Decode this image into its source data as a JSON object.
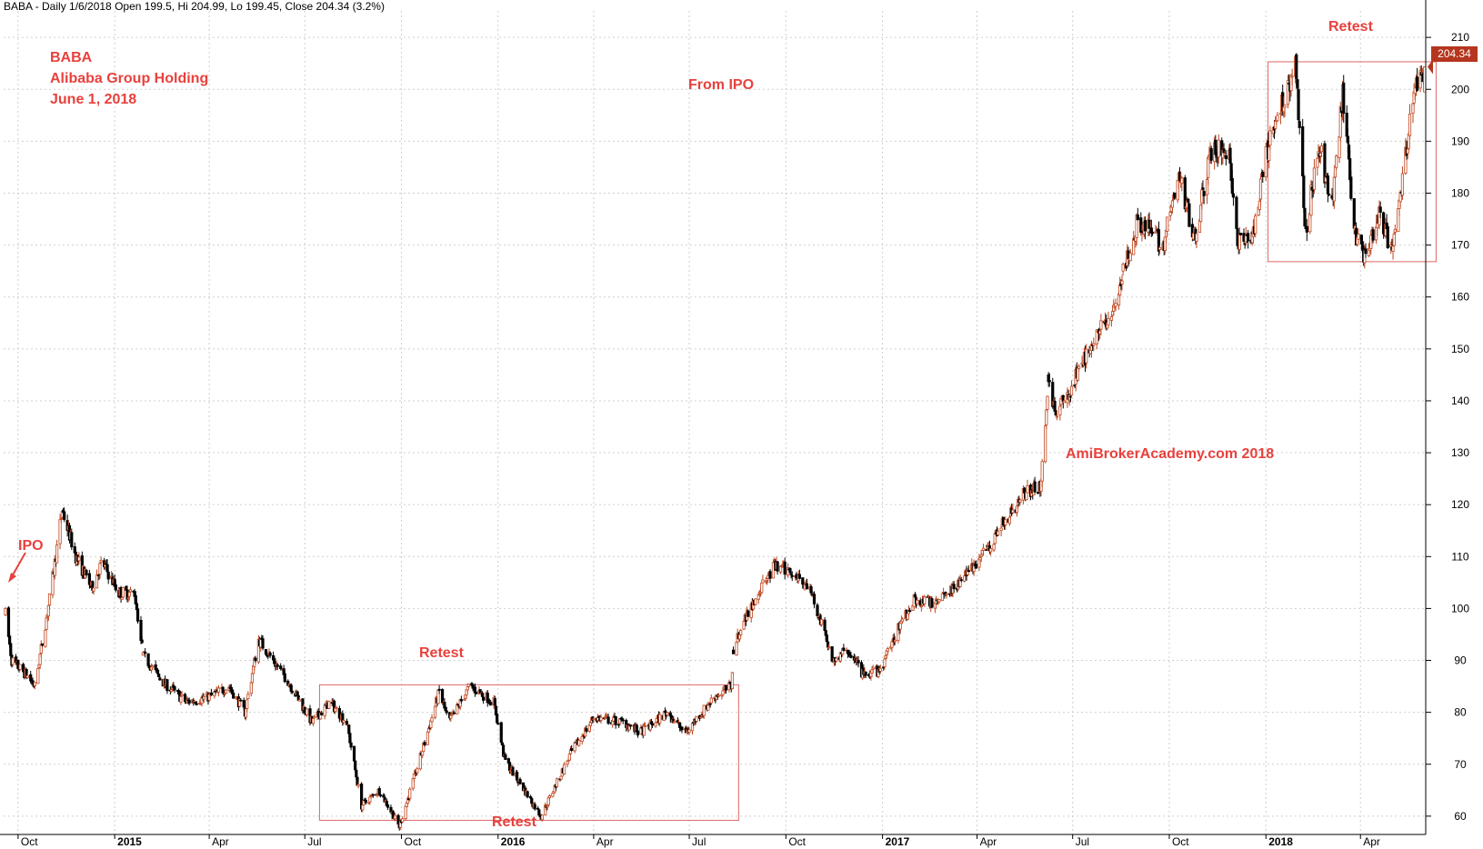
{
  "header": "BABA - Daily 1/6/2018 Open 199.5, Hi 204.99, Lo 199.45, Close 204.34 (3.2%)",
  "annotations": {
    "symbol": "BABA",
    "company": "Alibaba Group Holding",
    "date": "June 1, 2018",
    "from_ipo": "From IPO",
    "ipo": "IPO",
    "retest_top_2015": "Retest",
    "retest_bottom_2016": "Retest",
    "retest_2018": "Retest",
    "watermark": "AmiBrokerAcademy.com 2018"
  },
  "last_price_label": "204.34",
  "colors": {
    "annotation": "#e8413d",
    "box": "#e06666",
    "up_candle": "#c0461f",
    "down_candle": "#000000",
    "grid": "#cfcfcf",
    "badge": "#b5361e"
  },
  "chart_data": {
    "type": "candlestick",
    "x_tick_labels": [
      "Oct",
      "2015",
      "Apr",
      "Jul",
      "Oct",
      "2016",
      "Apr",
      "Jul",
      "Oct",
      "2017",
      "Apr",
      "Jul",
      "Oct",
      "2018",
      "Apr"
    ],
    "y_ticks": [
      60,
      70,
      80,
      90,
      100,
      110,
      120,
      130,
      140,
      150,
      160,
      170,
      180,
      190,
      200,
      210
    ],
    "ylim": [
      57,
      213
    ],
    "grid": true,
    "price_path": [
      {
        "x": "2014-09-19",
        "y": 99.0
      },
      {
        "x": "2014-09-25",
        "y": 90.0
      },
      {
        "x": "2014-10-10",
        "y": 87.0
      },
      {
        "x": "2014-10-17",
        "y": 85.0
      },
      {
        "x": "2014-11-01",
        "y": 103.0
      },
      {
        "x": "2014-11-12",
        "y": 119.0
      },
      {
        "x": "2014-11-25",
        "y": 110.0
      },
      {
        "x": "2014-12-10",
        "y": 104.0
      },
      {
        "x": "2014-12-20",
        "y": 109.0
      },
      {
        "x": "2015-01-05",
        "y": 103.0
      },
      {
        "x": "2015-01-20",
        "y": 103.0
      },
      {
        "x": "2015-01-28",
        "y": 91.0
      },
      {
        "x": "2015-02-15",
        "y": 86.0
      },
      {
        "x": "2015-03-10",
        "y": 82.0
      },
      {
        "x": "2015-04-01",
        "y": 83.0
      },
      {
        "x": "2015-04-20",
        "y": 85.0
      },
      {
        "x": "2015-05-05",
        "y": 80.0
      },
      {
        "x": "2015-05-18",
        "y": 94.0
      },
      {
        "x": "2015-06-15",
        "y": 86.0
      },
      {
        "x": "2015-07-08",
        "y": 78.0
      },
      {
        "x": "2015-07-25",
        "y": 82.0
      },
      {
        "x": "2015-08-10",
        "y": 78.0
      },
      {
        "x": "2015-08-24",
        "y": 62.0
      },
      {
        "x": "2015-09-10",
        "y": 65.0
      },
      {
        "x": "2015-09-29",
        "y": 58.0
      },
      {
        "x": "2015-10-20",
        "y": 72.0
      },
      {
        "x": "2015-11-06",
        "y": 84.0
      },
      {
        "x": "2015-11-15",
        "y": 78.0
      },
      {
        "x": "2015-12-05",
        "y": 85.0
      },
      {
        "x": "2015-12-28",
        "y": 82.0
      },
      {
        "x": "2016-01-07",
        "y": 71.0
      },
      {
        "x": "2016-02-11",
        "y": 60.0
      },
      {
        "x": "2016-03-10",
        "y": 72.0
      },
      {
        "x": "2016-04-01",
        "y": 79.0
      },
      {
        "x": "2016-05-01",
        "y": 78.0
      },
      {
        "x": "2016-05-15",
        "y": 76.0
      },
      {
        "x": "2016-06-10",
        "y": 80.0
      },
      {
        "x": "2016-06-27",
        "y": 76.0
      },
      {
        "x": "2016-07-25",
        "y": 83.0
      },
      {
        "x": "2016-08-10",
        "y": 85.0
      },
      {
        "x": "2016-08-12",
        "y": 92.0
      },
      {
        "x": "2016-08-20",
        "y": 97.0
      },
      {
        "x": "2016-09-07",
        "y": 104.0
      },
      {
        "x": "2016-09-20",
        "y": 108.0
      },
      {
        "x": "2016-10-10",
        "y": 107.0
      },
      {
        "x": "2016-10-25",
        "y": 103.0
      },
      {
        "x": "2016-11-15",
        "y": 90.0
      },
      {
        "x": "2016-11-30",
        "y": 92.0
      },
      {
        "x": "2016-12-14",
        "y": 87.0
      },
      {
        "x": "2016-12-30",
        "y": 88.0
      },
      {
        "x": "2017-01-15",
        "y": 96.0
      },
      {
        "x": "2017-02-01",
        "y": 102.0
      },
      {
        "x": "2017-02-15",
        "y": 101.0
      },
      {
        "x": "2017-03-15",
        "y": 105.0
      },
      {
        "x": "2017-04-01",
        "y": 109.0
      },
      {
        "x": "2017-04-25",
        "y": 116.0
      },
      {
        "x": "2017-05-15",
        "y": 122.0
      },
      {
        "x": "2017-06-01",
        "y": 124.0
      },
      {
        "x": "2017-06-08",
        "y": 145.0
      },
      {
        "x": "2017-06-15",
        "y": 137.0
      },
      {
        "x": "2017-07-01",
        "y": 143.0
      },
      {
        "x": "2017-07-20",
        "y": 152.0
      },
      {
        "x": "2017-08-10",
        "y": 157.0
      },
      {
        "x": "2017-08-18",
        "y": 165.0
      },
      {
        "x": "2017-09-01",
        "y": 175.0
      },
      {
        "x": "2017-09-25",
        "y": 170.0
      },
      {
        "x": "2017-10-10",
        "y": 183.0
      },
      {
        "x": "2017-10-25",
        "y": 172.0
      },
      {
        "x": "2017-11-10",
        "y": 188.0
      },
      {
        "x": "2017-11-27",
        "y": 188.0
      },
      {
        "x": "2017-12-05",
        "y": 170.0
      },
      {
        "x": "2017-12-20",
        "y": 172.0
      },
      {
        "x": "2018-01-02",
        "y": 188.0
      },
      {
        "x": "2018-01-29",
        "y": 205.0
      },
      {
        "x": "2018-02-08",
        "y": 172.0
      },
      {
        "x": "2018-02-20",
        "y": 190.0
      },
      {
        "x": "2018-03-05",
        "y": 177.0
      },
      {
        "x": "2018-03-15",
        "y": 199.0
      },
      {
        "x": "2018-03-27",
        "y": 172.0
      },
      {
        "x": "2018-04-05",
        "y": 168.0
      },
      {
        "x": "2018-04-20",
        "y": 176.0
      },
      {
        "x": "2018-04-30",
        "y": 169.0
      },
      {
        "x": "2018-05-10",
        "y": 180.0
      },
      {
        "x": "2018-05-20",
        "y": 198.0
      },
      {
        "x": "2018-06-01",
        "y": 204.34
      }
    ],
    "gaps": [
      "2015-01-28",
      "2016-08-12",
      "2017-06-08",
      "2017-08-18"
    ],
    "overlays": [
      {
        "label": "Retest",
        "x_start": "2015-07-15",
        "x_end": "2016-08-17",
        "y_low": 59.2,
        "y_high": 85.3
      },
      {
        "label": "Retest",
        "x_start": "2018-01-03",
        "x_end": "2018-06-12",
        "y_low": 166.8,
        "y_high": 205.3
      }
    ]
  }
}
